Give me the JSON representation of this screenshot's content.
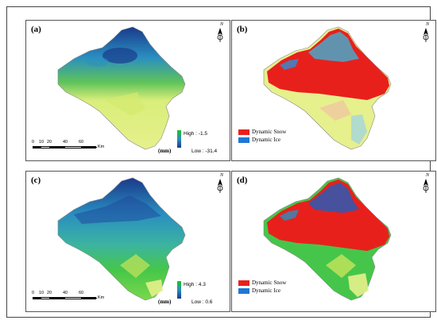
{
  "panels": [
    {
      "label": "(a)",
      "legend": {
        "type": "gradient",
        "high": "High : -1.5",
        "low": "Low : -31.4",
        "unit": "(mm)"
      }
    },
    {
      "label": "(b)",
      "legend": {
        "type": "categories",
        "items": [
          {
            "name": "Dynamic Snow",
            "color": "#e8201c"
          },
          {
            "name": "Dynamic Ice",
            "color": "#1f77d4"
          }
        ]
      }
    },
    {
      "label": "(c)",
      "legend": {
        "type": "gradient",
        "high": "High : 4.3",
        "low": "Low : 0.6",
        "unit": "(mm)"
      }
    },
    {
      "label": "(d)",
      "legend": {
        "type": "categories",
        "items": [
          {
            "name": "Dynamic Snow",
            "color": "#e8201c"
          },
          {
            "name": "Dynamic Ice",
            "color": "#1f77d4"
          }
        ]
      }
    }
  ],
  "scalebar": {
    "ticks": [
      "0",
      "10",
      "20",
      "40",
      "60"
    ],
    "unit": "Km"
  },
  "north_arrow": {
    "label": "N",
    "icon": "north-arrow-icon"
  },
  "colors": {
    "low_green": "#1fc31f",
    "mid_teal": "#2a8fc0",
    "high_blue": "#1a3a8c",
    "pale_yellow": "#e6f08c",
    "snow_red": "#e8201c",
    "ice_blue": "#1f77d4"
  }
}
